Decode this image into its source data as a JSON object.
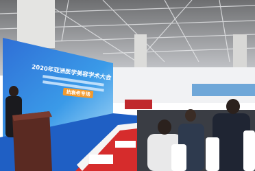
{
  "screen": {
    "title": "2020年亚洲医学美容学术大会",
    "session": "抗衰老专场"
  }
}
